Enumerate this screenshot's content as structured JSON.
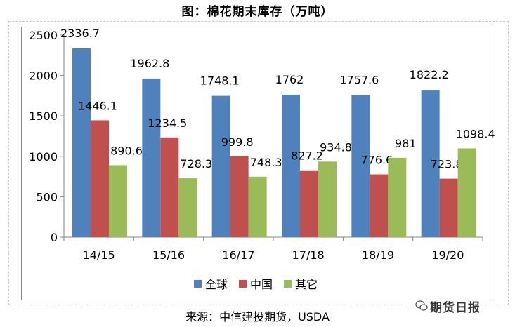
{
  "title": "图：棉花期末库存（万吨）",
  "source": "来源：中信建投期货，USDA",
  "watermark": "期货日报",
  "colors": {
    "全球": "#4f81bd",
    "中国": "#c0504d",
    "其它": "#9bbb59"
  },
  "chart_data": {
    "type": "bar",
    "categories": [
      "14/15",
      "15/16",
      "16/17",
      "17/18",
      "18/19",
      "19/20"
    ],
    "series": [
      {
        "name": "全球",
        "values": [
          2336.7,
          1962.8,
          1748.1,
          1762,
          1757.6,
          1822.2
        ]
      },
      {
        "name": "中国",
        "values": [
          1446.1,
          1234.5,
          999.8,
          827.2,
          776.6,
          723.8
        ]
      },
      {
        "name": "其它",
        "values": [
          890.6,
          728.3,
          748.3,
          934.8,
          981,
          1098.4
        ]
      }
    ],
    "ylim": [
      0,
      2500
    ],
    "yticks": [
      0,
      500,
      1000,
      1500,
      2000,
      2500
    ],
    "data_labels": [
      [
        "2336.7",
        "1962.8",
        "1748.1",
        "1762",
        "1757.6",
        "1822.2"
      ],
      [
        "1446.1",
        "1234.5",
        "999.8",
        "827.2",
        "776.6",
        "723.8"
      ],
      [
        "890.6",
        "728.3",
        "748.3",
        "934.8",
        "981",
        "1098.4"
      ]
    ],
    "legend_position": "bottom",
    "grid": false
  }
}
